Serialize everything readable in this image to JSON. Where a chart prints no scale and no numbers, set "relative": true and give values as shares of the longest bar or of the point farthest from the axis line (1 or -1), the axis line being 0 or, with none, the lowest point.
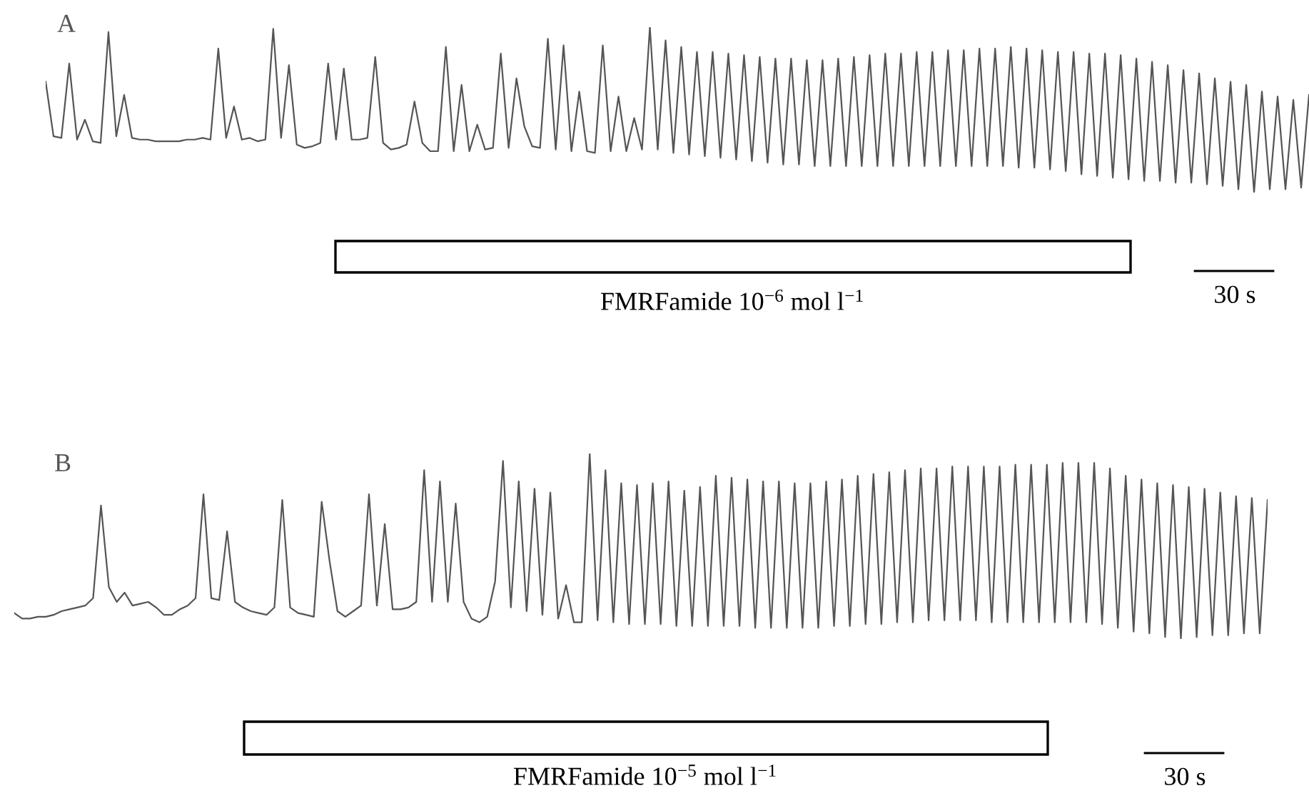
{
  "chart_data": [
    {
      "type": "line",
      "title": "A",
      "relative": true,
      "tick_labels": false,
      "categories": [
        null,
        null,
        null,
        null,
        null,
        null,
        null,
        null,
        null,
        null,
        null,
        null,
        null,
        null,
        null,
        null,
        null,
        null,
        null,
        null,
        null,
        null,
        null,
        null,
        null,
        null,
        null,
        null,
        null,
        null,
        null,
        null,
        null,
        null,
        null,
        null,
        null,
        null,
        null,
        null,
        null,
        null,
        null,
        null,
        null,
        null,
        null,
        null,
        null,
        null,
        null,
        null,
        null,
        null,
        null,
        null,
        null,
        null,
        null,
        null,
        null,
        null,
        null,
        null,
        null,
        null,
        null,
        null,
        null,
        null,
        null,
        null,
        null,
        null,
        null,
        null,
        null,
        null,
        null,
        null,
        null,
        null,
        null,
        null,
        null,
        null,
        null,
        null,
        null,
        null,
        null,
        null,
        null,
        null,
        null,
        null,
        null,
        null,
        null,
        null,
        null,
        null,
        null,
        null,
        null,
        null,
        null,
        null,
        null,
        null,
        null,
        null,
        null,
        null,
        null,
        null,
        null,
        null,
        null,
        null,
        null,
        null,
        null,
        null,
        null,
        null,
        null,
        null,
        null,
        null,
        null,
        null,
        null,
        null,
        null,
        null,
        null,
        null,
        null,
        null,
        null,
        null,
        null,
        null,
        null,
        null,
        null,
        null,
        null,
        null,
        null,
        null,
        null,
        null,
        null,
        null,
        null,
        null,
        null,
        null,
        null,
        null
      ],
      "series": [
        {
          "color": "#555555",
          "values": [
            0.67,
            0.34,
            0.33,
            0.78,
            0.32,
            0.44,
            0.31,
            0.3,
            0.97,
            0.34,
            0.59,
            0.33,
            0.32,
            0.32,
            0.31,
            0.31,
            0.31,
            0.31,
            0.32,
            0.32,
            0.33,
            0.32,
            0.87,
            0.33,
            0.52,
            0.32,
            0.33,
            0.31,
            0.32,
            0.99,
            0.33,
            0.77,
            0.29,
            0.27,
            0.28,
            0.3,
            0.78,
            0.32,
            0.75,
            0.32,
            0.32,
            0.33,
            0.82,
            0.3,
            0.26,
            0.27,
            0.29,
            0.55,
            0.3,
            0.25,
            0.25,
            0.88,
            0.25,
            0.65,
            0.25,
            0.41,
            0.26,
            0.27,
            0.84,
            0.27,
            0.69,
            0.4,
            0.28,
            0.27,
            0.93,
            0.26,
            0.89,
            0.25,
            0.61,
            0.25,
            0.24,
            0.89,
            0.25,
            0.58,
            0.25,
            0.45,
            0.26,
            1.0,
            0.26,
            0.92,
            0.24,
            0.88,
            0.23,
            0.85,
            0.22,
            0.85,
            0.21,
            0.84,
            0.2,
            0.83,
            0.19,
            0.82,
            0.18,
            0.81,
            0.17,
            0.81,
            0.17,
            0.8,
            0.16,
            0.8,
            0.16,
            0.81,
            0.16,
            0.82,
            0.16,
            0.83,
            0.16,
            0.84,
            0.16,
            0.84,
            0.16,
            0.85,
            0.16,
            0.85,
            0.16,
            0.86,
            0.16,
            0.86,
            0.16,
            0.87,
            0.16,
            0.87,
            0.16,
            0.88,
            0.15,
            0.87,
            0.15,
            0.86,
            0.14,
            0.85,
            0.13,
            0.85,
            0.11,
            0.84,
            0.1,
            0.84,
            0.09,
            0.83,
            0.08,
            0.81,
            0.07,
            0.79,
            0.07,
            0.77,
            0.06,
            0.74,
            0.06,
            0.72,
            0.05,
            0.69,
            0.04,
            0.67,
            0.02,
            0.65,
            0,
            0.61,
            0.02,
            0.58,
            0.02,
            0.56,
            0.03,
            0.59
          ]
        }
      ],
      "annotations": [
        "FMRFamide 10$^{−6}$ mol l$^{−1}$",
        "30 s"
      ]
    },
    {
      "type": "line",
      "title": "B",
      "relative": true,
      "tick_labels": false,
      "categories": [
        null,
        null,
        null,
        null,
        null,
        null,
        null,
        null,
        null,
        null,
        null,
        null,
        null,
        null,
        null,
        null,
        null,
        null,
        null,
        null,
        null,
        null,
        null,
        null,
        null,
        null,
        null,
        null,
        null,
        null,
        null,
        null,
        null,
        null,
        null,
        null,
        null,
        null,
        null,
        null,
        null,
        null,
        null,
        null,
        null,
        null,
        null,
        null,
        null,
        null,
        null,
        null,
        null,
        null,
        null,
        null,
        null,
        null,
        null,
        null,
        null,
        null,
        null,
        null,
        null,
        null,
        null,
        null,
        null,
        null,
        null,
        null,
        null,
        null,
        null,
        null,
        null,
        null,
        null,
        null,
        null,
        null,
        null,
        null,
        null,
        null,
        null,
        null,
        null,
        null,
        null,
        null,
        null,
        null,
        null,
        null,
        null,
        null,
        null,
        null,
        null,
        null,
        null,
        null,
        null,
        null,
        null,
        null,
        null,
        null,
        null,
        null,
        null,
        null,
        null,
        null,
        null,
        null,
        null,
        null,
        null,
        null,
        null,
        null,
        null,
        null,
        null,
        null,
        null,
        null,
        null,
        null,
        null,
        null,
        null,
        null,
        null,
        null,
        null,
        null,
        null,
        null,
        null,
        null,
        null,
        null,
        null,
        null,
        null,
        null,
        null,
        null,
        null,
        null,
        null,
        null,
        null,
        null,
        null,
        null
      ],
      "series": [
        {
          "color": "#555555",
          "values": [
            0.14,
            0.11,
            0.11,
            0.12,
            0.12,
            0.13,
            0.15,
            0.16,
            0.17,
            0.18,
            0.22,
            0.72,
            0.28,
            0.2,
            0.25,
            0.18,
            0.19,
            0.2,
            0.17,
            0.13,
            0.13,
            0.16,
            0.18,
            0.22,
            0.78,
            0.22,
            0.21,
            0.58,
            0.2,
            0.17,
            0.15,
            0.14,
            0.13,
            0.17,
            0.75,
            0.17,
            0.14,
            0.13,
            0.12,
            0.74,
            0.42,
            0.15,
            0.12,
            0.15,
            0.18,
            0.78,
            0.18,
            0.62,
            0.16,
            0.16,
            0.17,
            0.2,
            0.91,
            0.2,
            0.85,
            0.2,
            0.73,
            0.2,
            0.11,
            0.09,
            0.12,
            0.31,
            0.96,
            0.17,
            0.85,
            0.15,
            0.81,
            0.13,
            0.79,
            0.11,
            0.29,
            0.09,
            0.09,
            1.0,
            0.1,
            0.91,
            0.09,
            0.84,
            0.08,
            0.83,
            0.08,
            0.84,
            0.08,
            0.85,
            0.07,
            0.8,
            0.07,
            0.82,
            0.07,
            0.88,
            0.07,
            0.87,
            0.07,
            0.86,
            0.06,
            0.85,
            0.06,
            0.85,
            0.06,
            0.84,
            0.06,
            0.84,
            0.06,
            0.85,
            0.07,
            0.86,
            0.07,
            0.88,
            0.08,
            0.89,
            0.08,
            0.9,
            0.09,
            0.91,
            0.09,
            0.92,
            0.1,
            0.92,
            0.1,
            0.93,
            0.1,
            0.93,
            0.1,
            0.93,
            0.09,
            0.93,
            0.09,
            0.94,
            0.09,
            0.94,
            0.09,
            0.94,
            0.09,
            0.95,
            0.09,
            0.95,
            0.09,
            0.95,
            0.08,
            0.92,
            0.06,
            0.88,
            0.04,
            0.86,
            0.03,
            0.84,
            0.01,
            0.83,
            0,
            0.82,
            0.01,
            0.81,
            0.02,
            0.79,
            0.02,
            0.77,
            0.03,
            0.76,
            0.03,
            0.75
          ]
        }
      ],
      "annotations": [
        "FMRFamide 10$^{−5}$ mol l$^{−1}$",
        "30 s"
      ]
    }
  ]
}
